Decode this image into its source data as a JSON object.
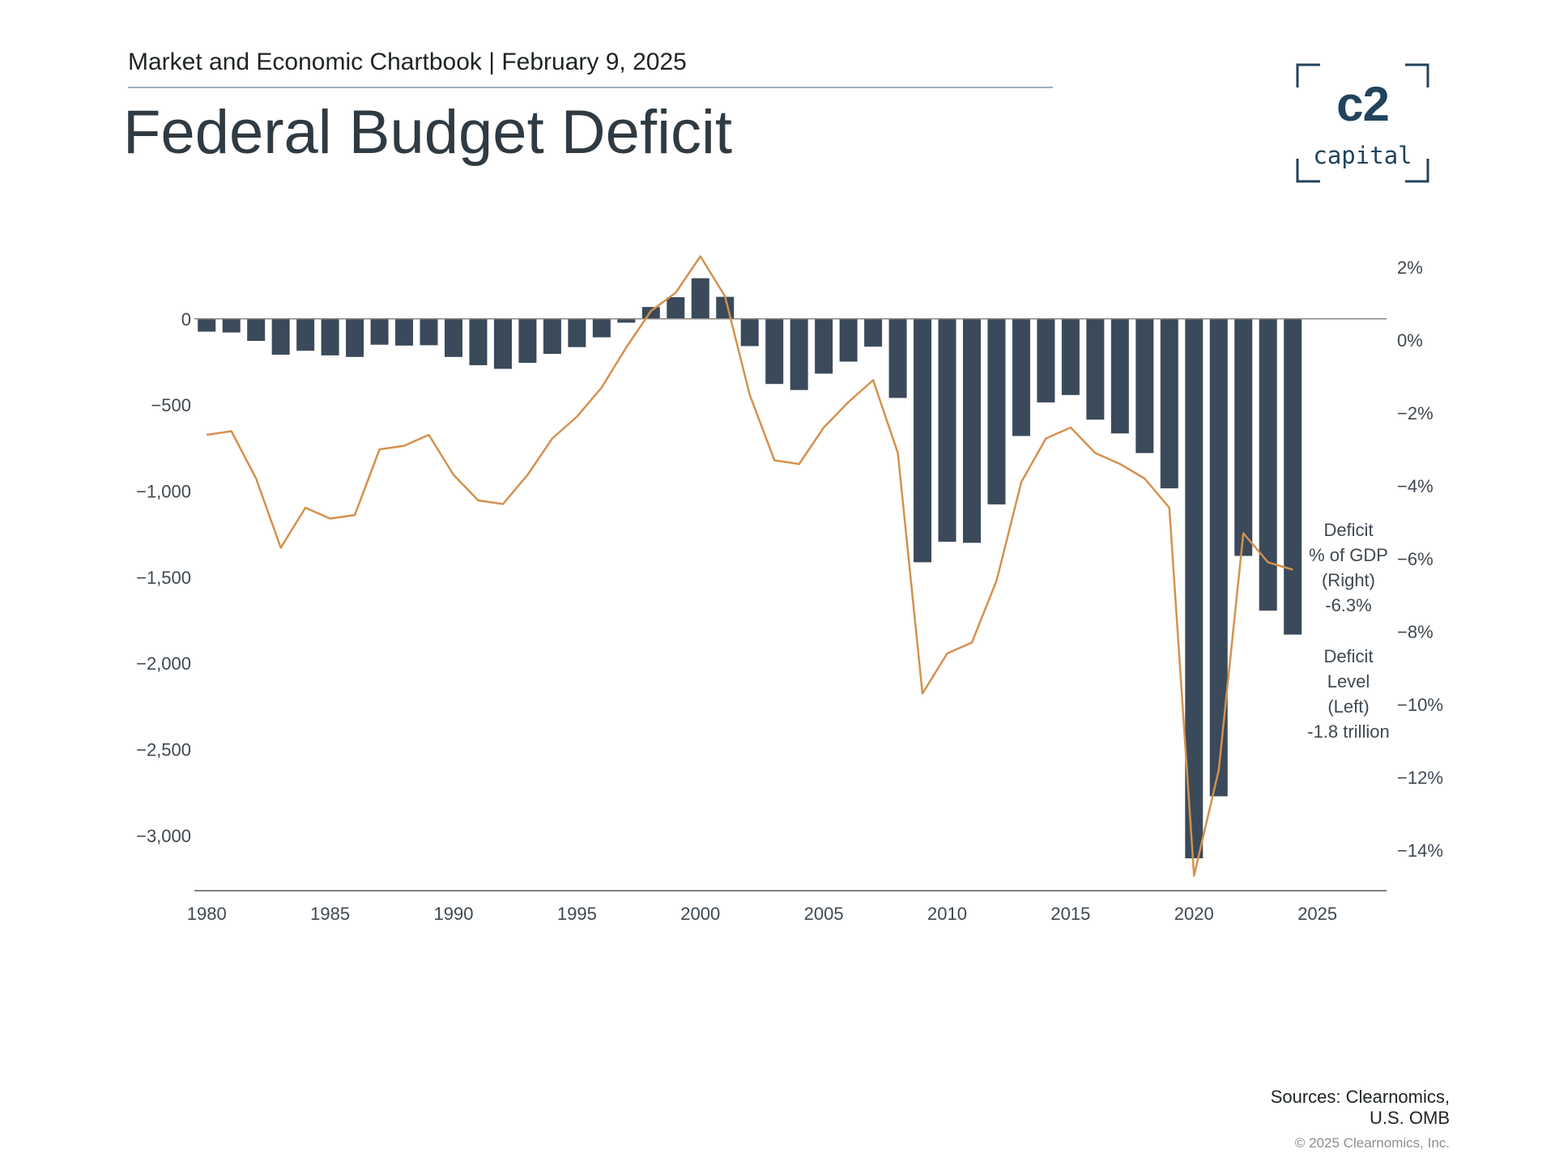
{
  "header": {
    "subtitle": "Market and Economic Chartbook | February 9, 2025",
    "title": "Federal Budget Deficit"
  },
  "logo": {
    "mark": "c2",
    "word": "capital"
  },
  "footer": {
    "sources_line1": "Sources: Clearnomics,",
    "sources_line2": "U.S. OMB",
    "copyright": "© 2025 Clearnomics, Inc."
  },
  "colors": {
    "bar": "#3a4a5a",
    "line": "#d4914d",
    "axis": "#555555",
    "text": "#3f4852"
  },
  "chart_data": {
    "type": "bar",
    "x": [
      1980,
      1981,
      1982,
      1983,
      1984,
      1985,
      1986,
      1987,
      1988,
      1989,
      1990,
      1991,
      1992,
      1993,
      1994,
      1995,
      1996,
      1997,
      1998,
      1999,
      2000,
      2001,
      2002,
      2003,
      2004,
      2005,
      2006,
      2007,
      2008,
      2009,
      2010,
      2011,
      2012,
      2013,
      2014,
      2015,
      2016,
      2017,
      2018,
      2019,
      2020,
      2021,
      2022,
      2023,
      2024
    ],
    "series": [
      {
        "name": "Deficit Level (Left)",
        "type": "bar",
        "axis": "left",
        "values": [
          -74,
          -79,
          -128,
          -208,
          -185,
          -212,
          -221,
          -150,
          -155,
          -153,
          -221,
          -269,
          -290,
          -255,
          -203,
          -164,
          -107,
          -22,
          69,
          126,
          236,
          128,
          -158,
          -378,
          -413,
          -318,
          -248,
          -161,
          -459,
          -1413,
          -1294,
          -1300,
          -1077,
          -680,
          -485,
          -442,
          -585,
          -665,
          -779,
          -984,
          -3132,
          -2772,
          -1376,
          -1694,
          -1833
        ]
      },
      {
        "name": "Deficit % of GDP (Right)",
        "type": "line",
        "axis": "right",
        "values": [
          -2.6,
          -2.5,
          -3.8,
          -5.7,
          -4.6,
          -4.9,
          -4.8,
          -3.0,
          -2.9,
          -2.6,
          -3.7,
          -4.4,
          -4.5,
          -3.7,
          -2.7,
          -2.1,
          -1.3,
          -0.2,
          0.8,
          1.3,
          2.3,
          1.2,
          -1.5,
          -3.3,
          -3.4,
          -2.4,
          -1.7,
          -1.1,
          -3.1,
          -9.7,
          -8.6,
          -8.3,
          -6.6,
          -3.9,
          -2.7,
          -2.4,
          -3.1,
          -3.4,
          -3.8,
          -4.6,
          -14.7,
          -11.8,
          -5.3,
          -6.1,
          -6.3
        ]
      }
    ],
    "x_ticks": [
      "1980",
      "1985",
      "1990",
      "1995",
      "2000",
      "2005",
      "2010",
      "2015",
      "2020",
      "2025"
    ],
    "x_tick_values": [
      1980,
      1985,
      1990,
      1995,
      2000,
      2005,
      2010,
      2015,
      2020,
      2025
    ],
    "xlim": [
      1979.5,
      2027.8
    ],
    "y_left": {
      "ticks": [
        "0",
        "−500",
        "−1,000",
        "−1,500",
        "−2,000",
        "−2,500",
        "−3,000"
      ],
      "tick_values": [
        0,
        -500,
        -1000,
        -1500,
        -2000,
        -2500,
        -3000
      ],
      "ylim": [
        -3320,
        300
      ]
    },
    "y_right": {
      "ticks": [
        "2%",
        "0%",
        "−2%",
        "−4%",
        "−6%",
        "−8%",
        "−10%",
        "−12%",
        "−14%"
      ],
      "tick_values": [
        2,
        0,
        -2,
        -4,
        -6,
        -8,
        -10,
        -12,
        -14
      ],
      "ylim": [
        -15.11,
        2.0
      ]
    },
    "annotations": {
      "pct": [
        "Deficit",
        "% of GDP",
        "(Right)",
        "-6.3%"
      ],
      "level": [
        "Deficit",
        "Level",
        "(Left)",
        "-1.8 trillion"
      ]
    },
    "title": "Federal Budget Deficit",
    "xlabel": "",
    "ylabel": "",
    "grid": false
  }
}
